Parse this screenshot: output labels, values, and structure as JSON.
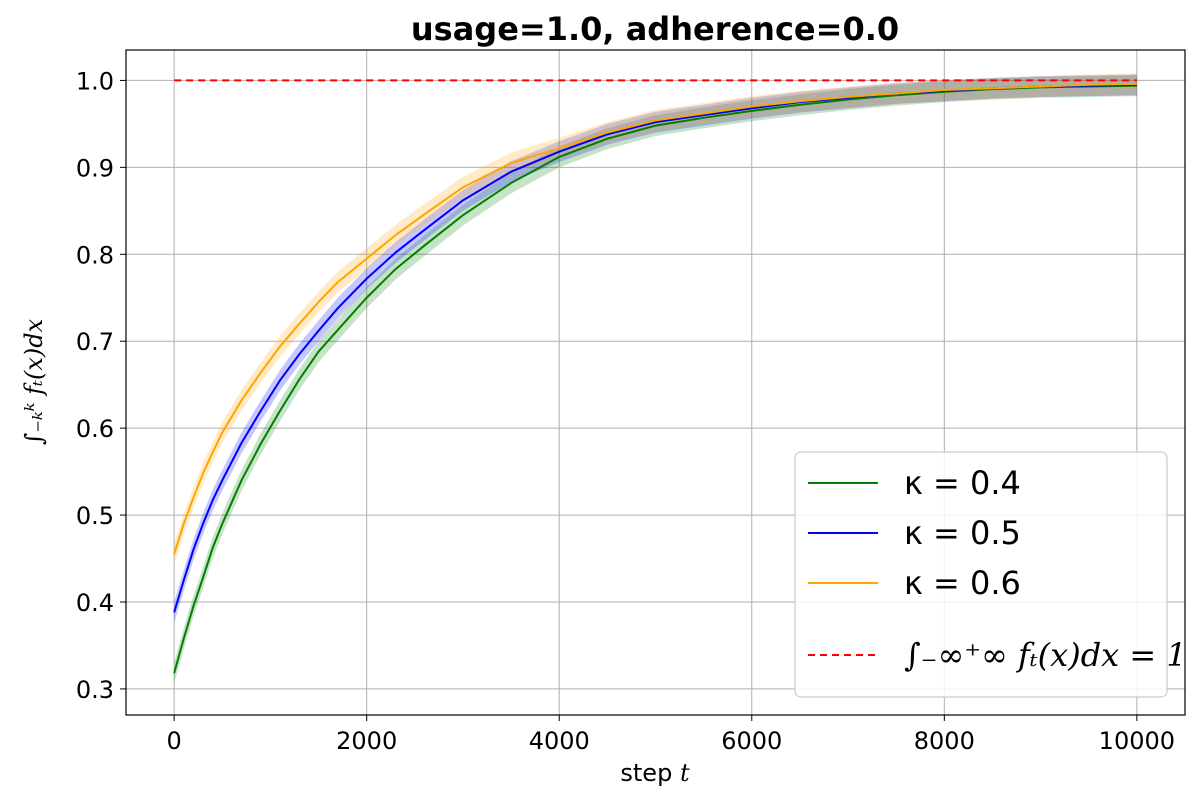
{
  "chart_data": {
    "type": "line",
    "title": "usage=1.0, adherence=0.0",
    "xlabel_prefix": "step ",
    "xlabel_var": "t",
    "ylabel": "∫₋ₖᵏ fₜ(x)dx",
    "xlim": [
      -500,
      10500
    ],
    "ylim": [
      0.27,
      1.035
    ],
    "xticks": [
      0,
      2000,
      4000,
      6000,
      8000,
      10000
    ],
    "yticks": [
      0.3,
      0.4,
      0.5,
      0.6,
      0.7,
      0.8,
      0.9,
      1.0
    ],
    "grid": true,
    "legend_position": "lower-right",
    "x": [
      0,
      100,
      200,
      300,
      400,
      500,
      700,
      900,
      1100,
      1300,
      1500,
      1700,
      2000,
      2300,
      2600,
      3000,
      3500,
      4000,
      4500,
      5000,
      5500,
      6000,
      6500,
      7000,
      7500,
      8000,
      8500,
      9000,
      9500,
      10000
    ],
    "series": [
      {
        "name": "κ =  0.4",
        "color": "#008000",
        "values": [
          0.318,
          0.358,
          0.395,
          0.428,
          0.462,
          0.49,
          0.54,
          0.582,
          0.62,
          0.656,
          0.688,
          0.713,
          0.75,
          0.783,
          0.81,
          0.845,
          0.882,
          0.912,
          0.933,
          0.948,
          0.957,
          0.965,
          0.972,
          0.978,
          0.983,
          0.987,
          0.99,
          0.992,
          0.993,
          0.994
        ],
        "band": 0.012
      },
      {
        "name": "κ =  0.5",
        "color": "#0000ff",
        "values": [
          0.388,
          0.425,
          0.46,
          0.49,
          0.517,
          0.54,
          0.583,
          0.62,
          0.655,
          0.685,
          0.712,
          0.738,
          0.772,
          0.802,
          0.828,
          0.862,
          0.895,
          0.918,
          0.938,
          0.952,
          0.96,
          0.968,
          0.975,
          0.98,
          0.985,
          0.988,
          0.991,
          0.993,
          0.994,
          0.995
        ],
        "band": 0.012
      },
      {
        "name": "κ =  0.6",
        "color": "#ffa500",
        "values": [
          0.455,
          0.49,
          0.52,
          0.548,
          0.572,
          0.595,
          0.632,
          0.664,
          0.694,
          0.72,
          0.745,
          0.768,
          0.795,
          0.822,
          0.846,
          0.877,
          0.905,
          0.922,
          0.94,
          0.954,
          0.962,
          0.97,
          0.976,
          0.981,
          0.985,
          0.989,
          0.991,
          0.993,
          0.995,
          0.996
        ],
        "band": 0.012
      },
      {
        "name": "∫₋∞⁺∞ fₜ(x)dx = 1",
        "color": "#ff0000",
        "dashed": true,
        "values": [
          1.0,
          1.0,
          1.0,
          1.0,
          1.0,
          1.0,
          1.0,
          1.0,
          1.0,
          1.0,
          1.0,
          1.0,
          1.0,
          1.0,
          1.0,
          1.0,
          1.0,
          1.0,
          1.0,
          1.0,
          1.0,
          1.0,
          1.0,
          1.0,
          1.0,
          1.0,
          1.0,
          1.0,
          1.0,
          1.0
        ]
      }
    ]
  }
}
